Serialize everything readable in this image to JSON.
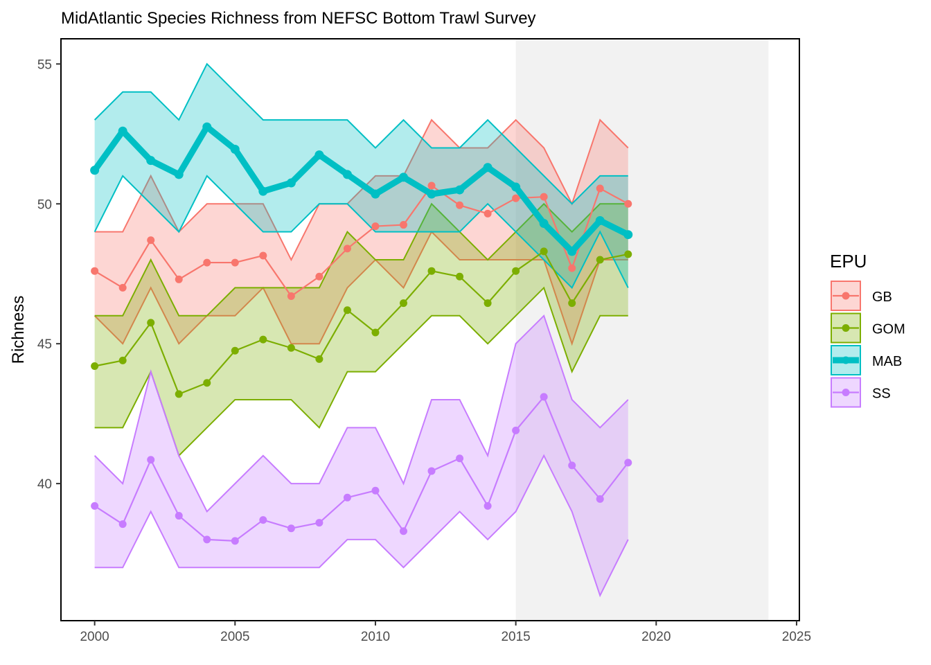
{
  "chart_data": {
    "type": "line",
    "title": "MidAtlantic Species Richness from NEFSC Bottom Trawl Survey",
    "xlabel": "",
    "ylabel": "Richness",
    "xlim": [
      1998.8,
      2025.1
    ],
    "ylim": [
      35.1,
      55.9
    ],
    "x_ticks": [
      2000,
      2005,
      2010,
      2015,
      2020,
      2025
    ],
    "y_ticks": [
      40,
      45,
      50,
      55
    ],
    "grid": false,
    "legend": {
      "title": "EPU",
      "position": "right"
    },
    "shaded_region": {
      "x": [
        2015,
        2024
      ],
      "color": "#f2f2f2"
    },
    "x": [
      2000,
      2001,
      2002,
      2003,
      2004,
      2005,
      2006,
      2007,
      2008,
      2009,
      2010,
      2011,
      2012,
      2013,
      2014,
      2015,
      2016,
      2017,
      2018,
      2019
    ],
    "series": [
      {
        "name": "GB",
        "color": "#F8766D",
        "values": [
          47.6,
          47.0,
          48.7,
          47.3,
          47.9,
          47.9,
          48.15,
          46.7,
          47.4,
          48.4,
          49.2,
          49.25,
          50.65,
          49.95,
          49.65,
          50.2,
          50.25,
          47.7,
          50.55,
          50.0
        ],
        "lower": [
          46,
          45,
          47,
          45,
          46,
          46,
          47,
          45,
          45,
          47,
          48,
          47,
          49,
          48,
          48,
          48,
          48,
          45,
          48,
          48
        ],
        "upper": [
          49,
          49,
          51,
          49,
          50,
          50,
          50,
          48,
          50,
          50,
          51,
          51,
          53,
          52,
          52,
          53,
          52,
          50,
          53,
          52
        ]
      },
      {
        "name": "GOM",
        "color": "#7CAE00",
        "values": [
          44.2,
          44.4,
          45.75,
          43.2,
          43.6,
          44.75,
          45.15,
          44.85,
          44.45,
          46.2,
          45.4,
          46.45,
          47.6,
          47.4,
          46.45,
          47.6,
          48.3,
          46.45,
          48.0,
          48.2
        ],
        "lower": [
          42,
          42,
          44,
          41,
          42,
          43,
          43,
          43,
          42,
          44,
          44,
          45,
          46,
          46,
          45,
          46,
          47,
          44,
          46,
          46
        ],
        "upper": [
          46,
          46,
          48,
          46,
          46,
          47,
          47,
          47,
          47,
          49,
          48,
          48,
          50,
          49,
          48,
          49,
          50,
          49,
          50,
          50
        ]
      },
      {
        "name": "MAB",
        "color": "#00BFC4",
        "values": [
          51.2,
          52.6,
          51.55,
          51.05,
          52.75,
          51.95,
          50.45,
          50.75,
          51.75,
          51.05,
          50.35,
          50.95,
          50.35,
          50.5,
          51.3,
          50.6,
          49.3,
          48.3,
          49.4,
          48.9
        ],
        "lower": [
          49,
          51,
          50,
          49,
          51,
          50,
          49,
          49,
          50,
          50,
          49,
          49,
          49,
          49,
          50,
          49,
          48,
          47,
          49,
          47
        ],
        "upper": [
          53,
          54,
          54,
          53,
          55,
          54,
          53,
          53,
          53,
          53,
          52,
          53,
          52,
          52,
          53,
          52,
          51,
          50,
          51,
          51
        ]
      },
      {
        "name": "SS",
        "color": "#C77CFF",
        "values": [
          39.2,
          38.55,
          40.85,
          38.85,
          38.0,
          37.95,
          38.7,
          38.4,
          38.6,
          39.5,
          39.75,
          38.3,
          40.45,
          40.9,
          39.2,
          41.9,
          43.1,
          40.65,
          39.45,
          40.75
        ],
        "lower": [
          37,
          37,
          39,
          37,
          37,
          37,
          37,
          37,
          37,
          38,
          38,
          37,
          38,
          39,
          38,
          39,
          41,
          39,
          36,
          38
        ],
        "upper": [
          41,
          40,
          44,
          41,
          39,
          40,
          41,
          40,
          40,
          42,
          42,
          40,
          43,
          43,
          41,
          45,
          46,
          43,
          42,
          43
        ]
      }
    ]
  }
}
